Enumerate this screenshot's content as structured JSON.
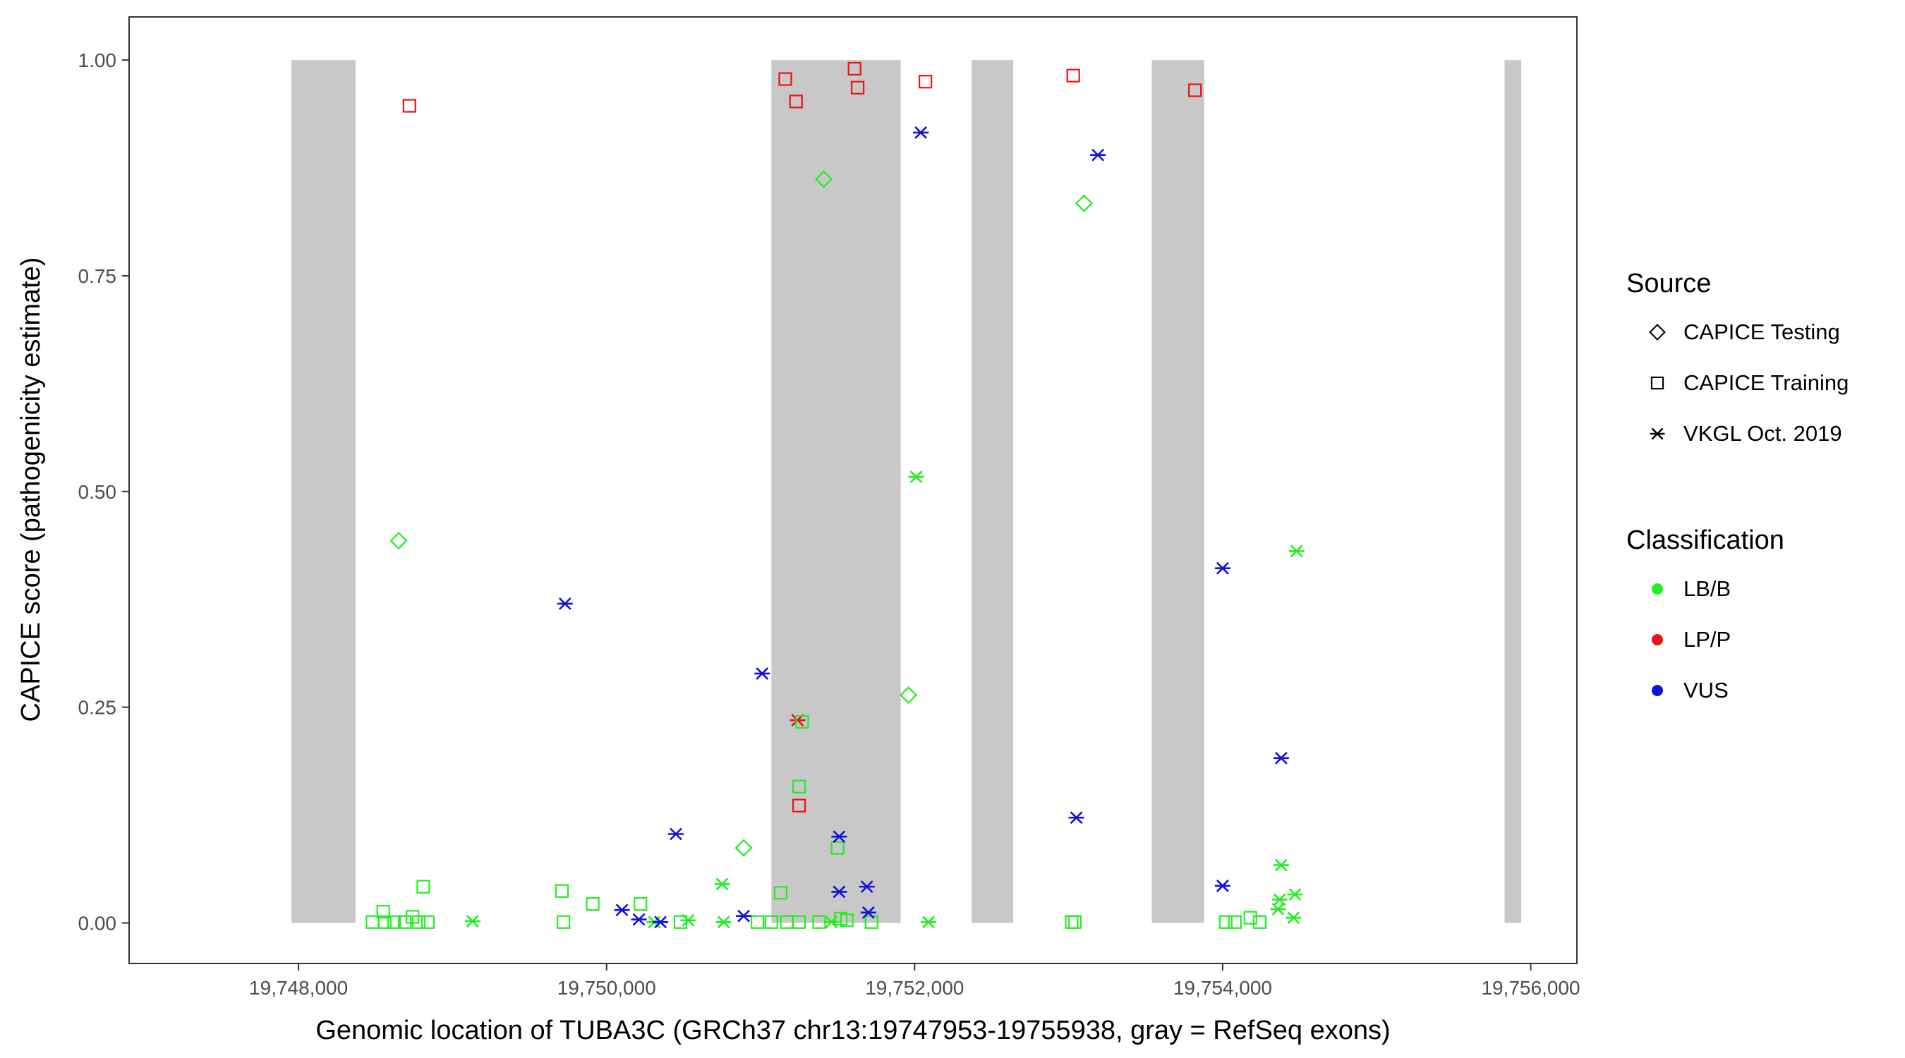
{
  "chart_data": {
    "type": "scatter",
    "title": "",
    "xlabel": "Genomic location of TUBA3C (GRCh37 chr13:19747953-19755938, gray = RefSeq exons)",
    "ylabel": "CAPICE score (pathogenicity estimate)",
    "xlim": [
      19746900,
      19756300
    ],
    "ylim": [
      -0.047,
      1.05
    ],
    "x_ticks": [
      19748000,
      19750000,
      19752000,
      19754000,
      19756000
    ],
    "x_tick_labels": [
      "19,748,000",
      "19,750,000",
      "19,752,000",
      "19,754,000",
      "19,756,000"
    ],
    "y_ticks": [
      0,
      0.25,
      0.5,
      0.75,
      1.0
    ],
    "y_tick_labels": [
      "0.00",
      "0.25",
      "0.50",
      "0.75",
      "1.00"
    ],
    "grid": false,
    "exons": [
      [
        19747953,
        19748370
      ],
      [
        19751070,
        19751910
      ],
      [
        19752370,
        19752640
      ],
      [
        19753540,
        19753880
      ],
      [
        19755830,
        19755938
      ]
    ],
    "exon_color": "#c8c8c8",
    "colors": {
      "LB/B": "#22ee22",
      "LP/P": "#ee1111",
      "VUS": "#1111dd"
    },
    "legend": {
      "position": "right",
      "source_title": "Source",
      "source_items": [
        {
          "label": "CAPICE Testing",
          "shape": "diamond"
        },
        {
          "label": "CAPICE Training",
          "shape": "square"
        },
        {
          "label": "VKGL Oct. 2019",
          "shape": "asterisk"
        }
      ],
      "class_title": "Classification",
      "class_items": [
        {
          "label": "LB/B",
          "color": "#22ee22"
        },
        {
          "label": "LP/P",
          "color": "#ee1111"
        },
        {
          "label": "VUS",
          "color": "#1111dd"
        }
      ]
    },
    "points": [
      {
        "x": 19748720,
        "y": 0.947,
        "source": "training",
        "cls": "LP/P"
      },
      {
        "x": 19751160,
        "y": 0.978,
        "source": "training",
        "cls": "LP/P"
      },
      {
        "x": 19751230,
        "y": 0.952,
        "source": "training",
        "cls": "LP/P"
      },
      {
        "x": 19751610,
        "y": 0.99,
        "source": "training",
        "cls": "LP/P"
      },
      {
        "x": 19751630,
        "y": 0.968,
        "source": "training",
        "cls": "LP/P"
      },
      {
        "x": 19752070,
        "y": 0.975,
        "source": "training",
        "cls": "LP/P"
      },
      {
        "x": 19753030,
        "y": 0.982,
        "source": "training",
        "cls": "LP/P"
      },
      {
        "x": 19753820,
        "y": 0.965,
        "source": "training",
        "cls": "LP/P"
      },
      {
        "x": 19751250,
        "y": 0.136,
        "source": "training",
        "cls": "LP/P"
      },
      {
        "x": 19751240,
        "y": 0.235,
        "source": "vkgl",
        "cls": "LP/P"
      },
      {
        "x": 19751410,
        "y": 0.862,
        "source": "testing",
        "cls": "LB/B"
      },
      {
        "x": 19753100,
        "y": 0.834,
        "source": "testing",
        "cls": "LB/B"
      },
      {
        "x": 19748650,
        "y": 0.443,
        "source": "testing",
        "cls": "LB/B"
      },
      {
        "x": 19751960,
        "y": 0.264,
        "source": "testing",
        "cls": "LB/B"
      },
      {
        "x": 19750890,
        "y": 0.087,
        "source": "testing",
        "cls": "LB/B"
      },
      {
        "x": 19752010,
        "y": 0.517,
        "source": "vkgl",
        "cls": "LB/B"
      },
      {
        "x": 19754480,
        "y": 0.431,
        "source": "vkgl",
        "cls": "LB/B"
      },
      {
        "x": 19750750,
        "y": 0.045,
        "source": "vkgl",
        "cls": "LB/B"
      },
      {
        "x": 19754380,
        "y": 0.067,
        "source": "vkgl",
        "cls": "LB/B"
      },
      {
        "x": 19754470,
        "y": 0.033,
        "source": "vkgl",
        "cls": "LB/B"
      },
      {
        "x": 19754370,
        "y": 0.027,
        "source": "vkgl",
        "cls": "LB/B"
      },
      {
        "x": 19754360,
        "y": 0.016,
        "source": "vkgl",
        "cls": "LB/B"
      },
      {
        "x": 19754460,
        "y": 0.006,
        "source": "vkgl",
        "cls": "LB/B"
      },
      {
        "x": 19749130,
        "y": 0.002,
        "source": "vkgl",
        "cls": "LB/B"
      },
      {
        "x": 19750310,
        "y": 0.001,
        "source": "vkgl",
        "cls": "LB/B"
      },
      {
        "x": 19750530,
        "y": 0.003,
        "source": "vkgl",
        "cls": "LB/B"
      },
      {
        "x": 19750760,
        "y": 0.001,
        "source": "vkgl",
        "cls": "LB/B"
      },
      {
        "x": 19751460,
        "y": 0.001,
        "source": "vkgl",
        "cls": "LB/B"
      },
      {
        "x": 19752090,
        "y": 0.001,
        "source": "vkgl",
        "cls": "LB/B"
      },
      {
        "x": 19749710,
        "y": 0.037,
        "source": "training",
        "cls": "LB/B"
      },
      {
        "x": 19749910,
        "y": 0.022,
        "source": "training",
        "cls": "LB/B"
      },
      {
        "x": 19749720,
        "y": 0.001,
        "source": "training",
        "cls": "LB/B"
      },
      {
        "x": 19748810,
        "y": 0.042,
        "source": "training",
        "cls": "LB/B"
      },
      {
        "x": 19748550,
        "y": 0.013,
        "source": "training",
        "cls": "LB/B"
      },
      {
        "x": 19748480,
        "y": 0.001,
        "source": "training",
        "cls": "LB/B"
      },
      {
        "x": 19748560,
        "y": 0.001,
        "source": "training",
        "cls": "LB/B"
      },
      {
        "x": 19748620,
        "y": 0.001,
        "source": "training",
        "cls": "LB/B"
      },
      {
        "x": 19748690,
        "y": 0.001,
        "source": "training",
        "cls": "LB/B"
      },
      {
        "x": 19748740,
        "y": 0.007,
        "source": "training",
        "cls": "LB/B"
      },
      {
        "x": 19748780,
        "y": 0.001,
        "source": "training",
        "cls": "LB/B"
      },
      {
        "x": 19748840,
        "y": 0.001,
        "source": "training",
        "cls": "LB/B"
      },
      {
        "x": 19750220,
        "y": 0.022,
        "source": "training",
        "cls": "LB/B"
      },
      {
        "x": 19751250,
        "y": 0.158,
        "source": "training",
        "cls": "LB/B"
      },
      {
        "x": 19751270,
        "y": 0.233,
        "source": "training",
        "cls": "LB/B"
      },
      {
        "x": 19751130,
        "y": 0.035,
        "source": "training",
        "cls": "LB/B"
      },
      {
        "x": 19751500,
        "y": 0.087,
        "source": "training",
        "cls": "LB/B"
      },
      {
        "x": 19750480,
        "y": 0.001,
        "source": "training",
        "cls": "LB/B"
      },
      {
        "x": 19750980,
        "y": 0.001,
        "source": "training",
        "cls": "LB/B"
      },
      {
        "x": 19751070,
        "y": 0.001,
        "source": "training",
        "cls": "LB/B"
      },
      {
        "x": 19751170,
        "y": 0.001,
        "source": "training",
        "cls": "LB/B"
      },
      {
        "x": 19751250,
        "y": 0.001,
        "source": "training",
        "cls": "LB/B"
      },
      {
        "x": 19751380,
        "y": 0.001,
        "source": "training",
        "cls": "LB/B"
      },
      {
        "x": 19751520,
        "y": 0.005,
        "source": "training",
        "cls": "LB/B"
      },
      {
        "x": 19751560,
        "y": 0.003,
        "source": "training",
        "cls": "LB/B"
      },
      {
        "x": 19751720,
        "y": 0.001,
        "source": "training",
        "cls": "LB/B"
      },
      {
        "x": 19753020,
        "y": 0.001,
        "source": "training",
        "cls": "LB/B"
      },
      {
        "x": 19753040,
        "y": 0.001,
        "source": "training",
        "cls": "LB/B"
      },
      {
        "x": 19754020,
        "y": 0.001,
        "source": "training",
        "cls": "LB/B"
      },
      {
        "x": 19754080,
        "y": 0.001,
        "source": "training",
        "cls": "LB/B"
      },
      {
        "x": 19754180,
        "y": 0.006,
        "source": "training",
        "cls": "LB/B"
      },
      {
        "x": 19754240,
        "y": 0.001,
        "source": "training",
        "cls": "LB/B"
      },
      {
        "x": 19752040,
        "y": 0.916,
        "source": "vkgl",
        "cls": "VUS"
      },
      {
        "x": 19753190,
        "y": 0.89,
        "source": "vkgl",
        "cls": "VUS"
      },
      {
        "x": 19749730,
        "y": 0.37,
        "source": "vkgl",
        "cls": "VUS"
      },
      {
        "x": 19751010,
        "y": 0.289,
        "source": "vkgl",
        "cls": "VUS"
      },
      {
        "x": 19754000,
        "y": 0.411,
        "source": "vkgl",
        "cls": "VUS"
      },
      {
        "x": 19754380,
        "y": 0.191,
        "source": "vkgl",
        "cls": "VUS"
      },
      {
        "x": 19753050,
        "y": 0.122,
        "source": "vkgl",
        "cls": "VUS"
      },
      {
        "x": 19750450,
        "y": 0.103,
        "source": "vkgl",
        "cls": "VUS"
      },
      {
        "x": 19751510,
        "y": 0.1,
        "source": "vkgl",
        "cls": "VUS"
      },
      {
        "x": 19754000,
        "y": 0.043,
        "source": "vkgl",
        "cls": "VUS"
      },
      {
        "x": 19751510,
        "y": 0.036,
        "source": "vkgl",
        "cls": "VUS"
      },
      {
        "x": 19751690,
        "y": 0.042,
        "source": "vkgl",
        "cls": "VUS"
      },
      {
        "x": 19750100,
        "y": 0.015,
        "source": "vkgl",
        "cls": "VUS"
      },
      {
        "x": 19750210,
        "y": 0.004,
        "source": "vkgl",
        "cls": "VUS"
      },
      {
        "x": 19750350,
        "y": 0.001,
        "source": "vkgl",
        "cls": "VUS"
      },
      {
        "x": 19750890,
        "y": 0.008,
        "source": "vkgl",
        "cls": "VUS"
      },
      {
        "x": 19751700,
        "y": 0.012,
        "source": "vkgl",
        "cls": "VUS"
      }
    ]
  }
}
